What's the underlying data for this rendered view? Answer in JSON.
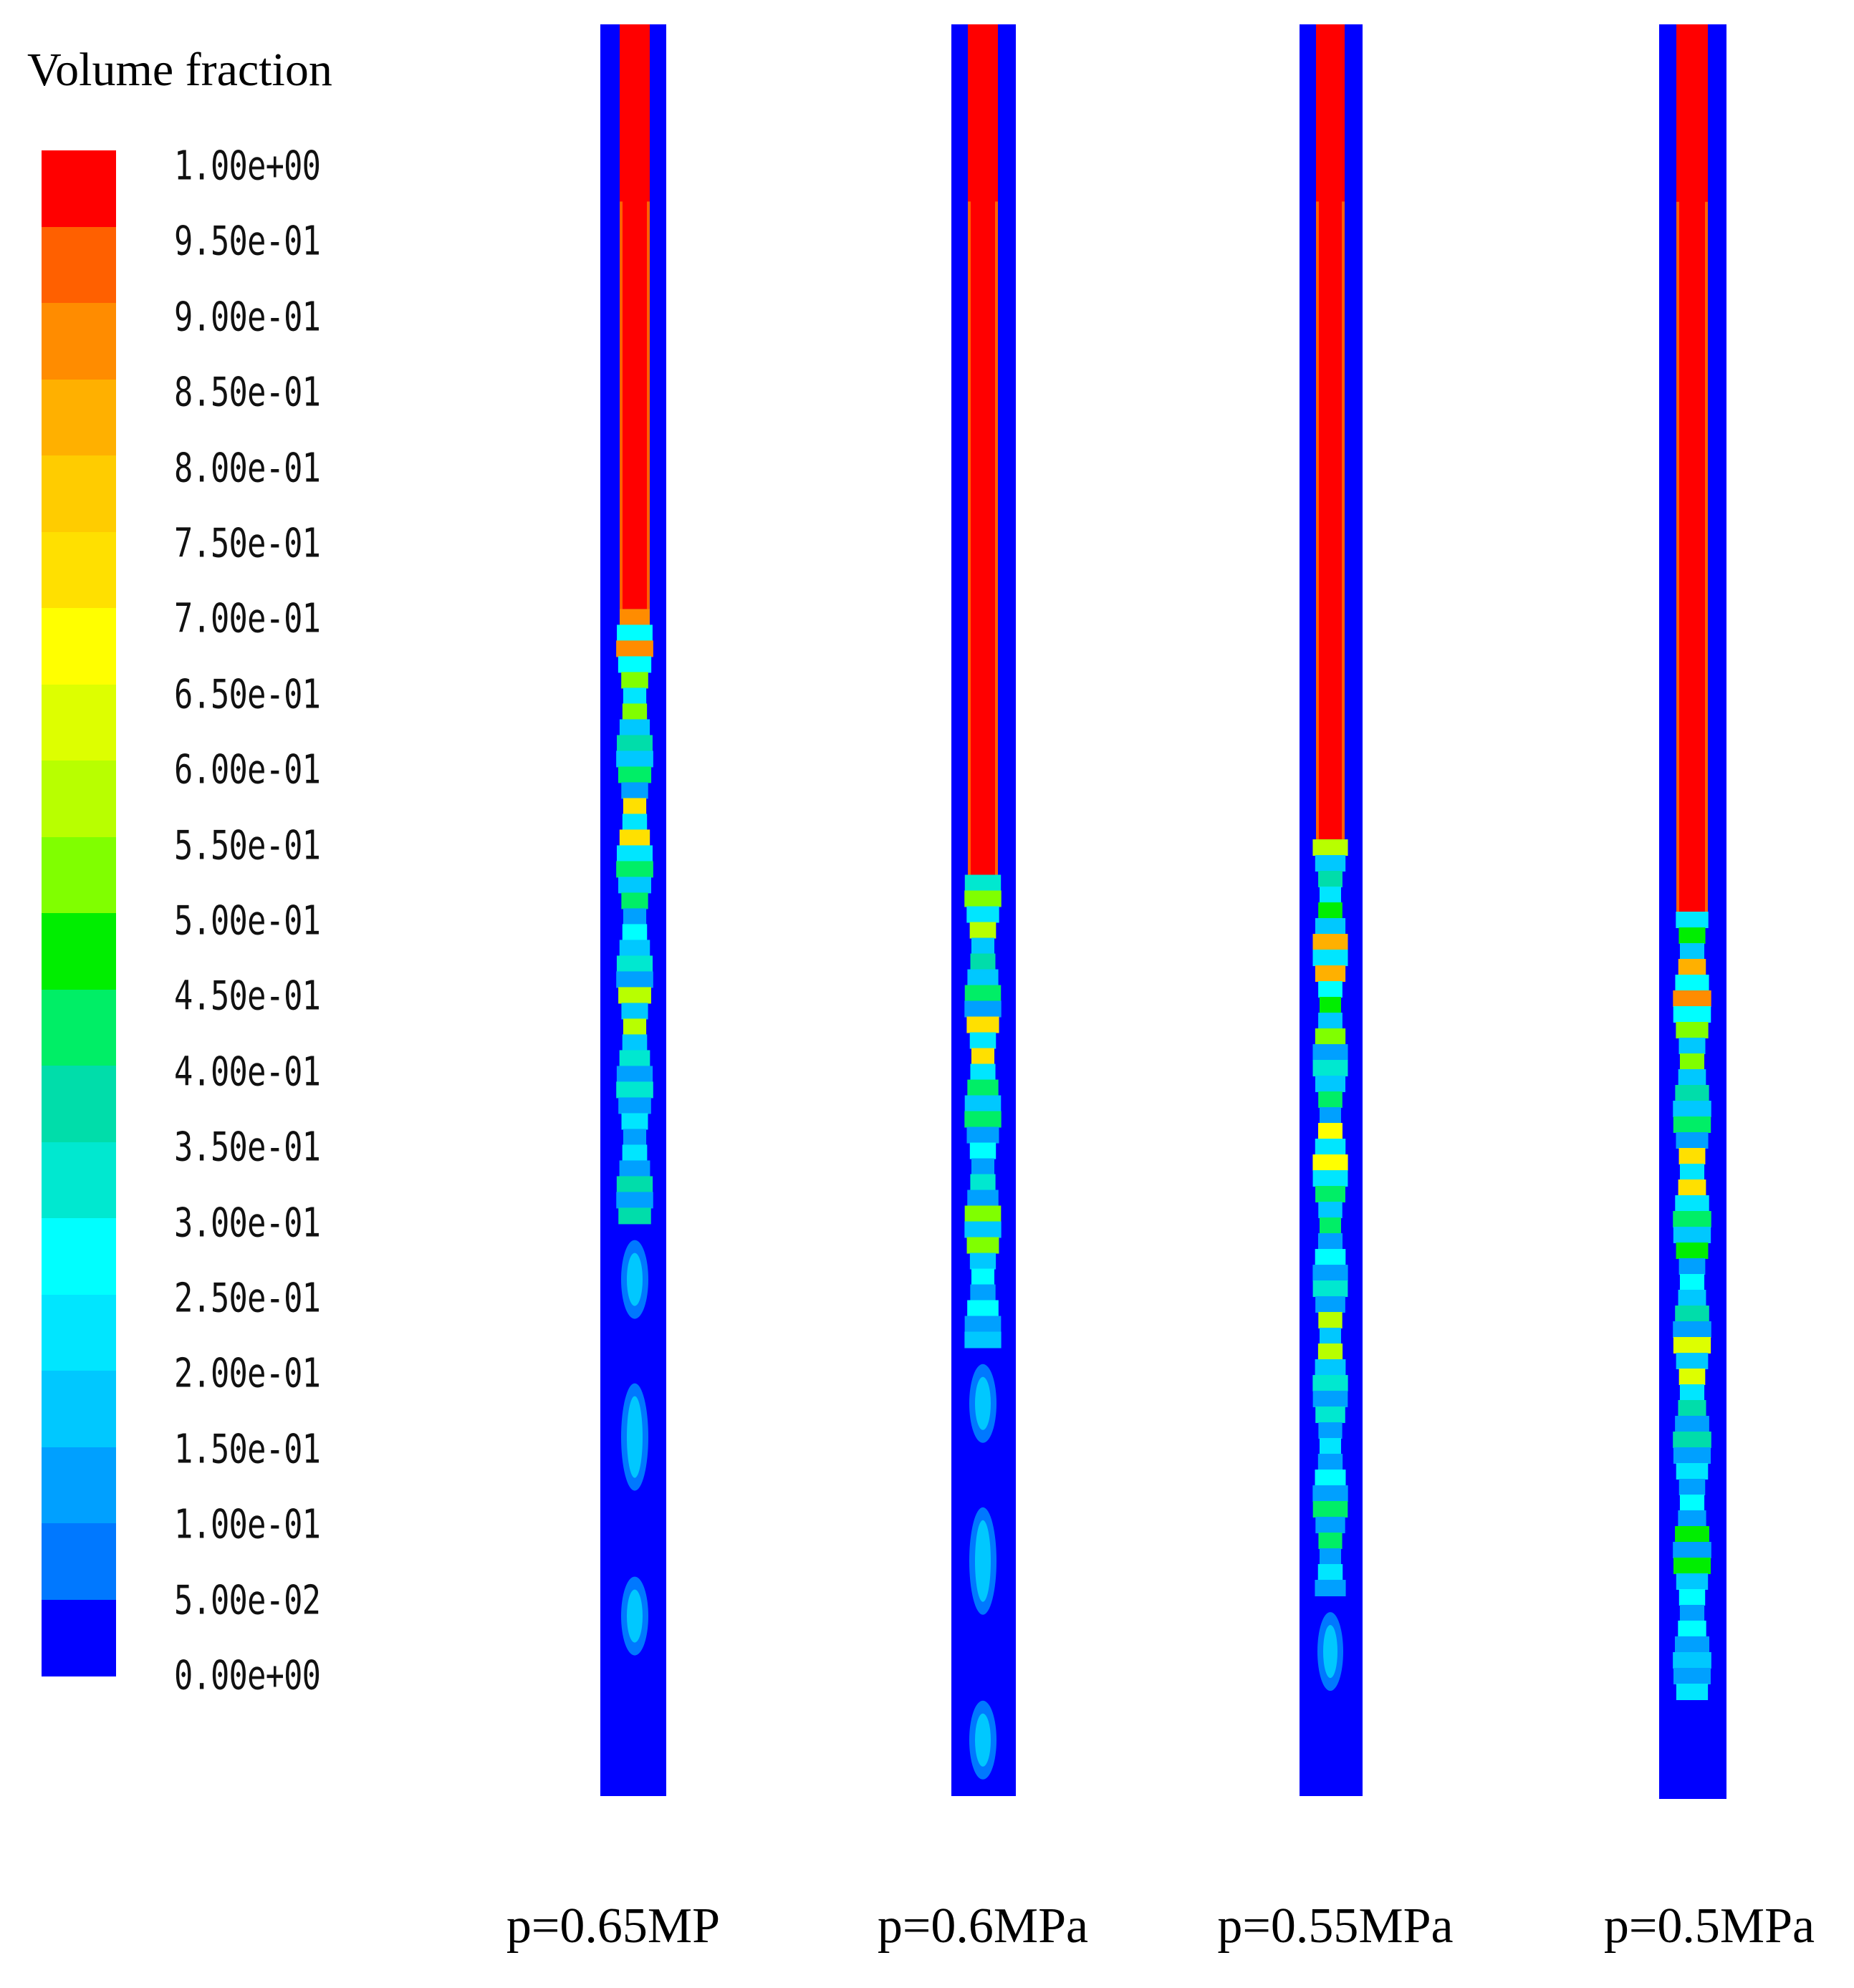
{
  "legend": {
    "title": "Volume fraction",
    "levels": [
      "1.00e+00",
      "9.50e-01",
      "9.00e-01",
      "8.50e-01",
      "8.00e-01",
      "7.50e-01",
      "7.00e-01",
      "6.50e-01",
      "6.00e-01",
      "5.50e-01",
      "5.00e-01",
      "4.50e-01",
      "4.00e-01",
      "3.50e-01",
      "3.00e-01",
      "2.50e-01",
      "2.00e-01",
      "1.50e-01",
      "1.00e-01",
      "5.00e-02",
      "0.00e+00"
    ],
    "colors": [
      "#ff0000",
      "#ff6000",
      "#ff8c00",
      "#ffb000",
      "#ffcc00",
      "#ffe000",
      "#ffff00",
      "#ddff00",
      "#b8ff00",
      "#80ff00",
      "#00ee00",
      "#00ee66",
      "#00ddaa",
      "#00e8d0",
      "#00ffff",
      "#00e6ff",
      "#00c8ff",
      "#00a0ff",
      "#0078ff",
      "#0000ff"
    ]
  },
  "cases": [
    {
      "label": "p=0.65MP",
      "front": 0.33,
      "mixed_end": 0.67
    },
    {
      "label": "p=0.6MPa",
      "front": 0.48,
      "mixed_end": 0.74
    },
    {
      "label": "p=0.55MPa",
      "front": 0.46,
      "mixed_end": 0.88
    },
    {
      "label": "p=0.5MPa",
      "front": 0.5,
      "mixed_end": 0.94
    }
  ]
}
